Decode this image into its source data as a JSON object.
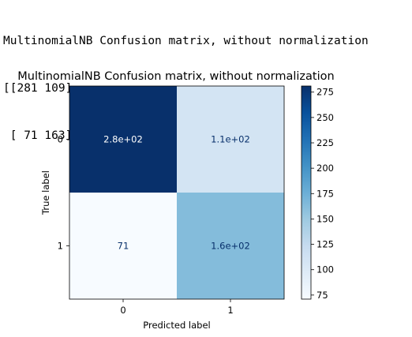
{
  "console": {
    "line1": "MultinomialNB Confusion matrix, without normalization",
    "line2": "[[281 109]",
    "line3": " [ 71 163]]"
  },
  "chart_data": {
    "type": "heatmap",
    "title": "MultinomialNB Confusion matrix, without normalization",
    "xlabel": "Predicted label",
    "ylabel": "True label",
    "x_ticks": [
      "0",
      "1"
    ],
    "y_ticks": [
      "0",
      "1"
    ],
    "values": [
      [
        281,
        109
      ],
      [
        71,
        163
      ]
    ],
    "cell_labels": [
      [
        "2.8e+02",
        "1.1e+02"
      ],
      [
        "71",
        "1.6e+02"
      ]
    ],
    "colormap": "Blues",
    "colorbar": {
      "ticks": [
        "75",
        "100",
        "125",
        "150",
        "175",
        "200",
        "225",
        "250",
        "275"
      ],
      "min": 71,
      "max": 281
    }
  }
}
